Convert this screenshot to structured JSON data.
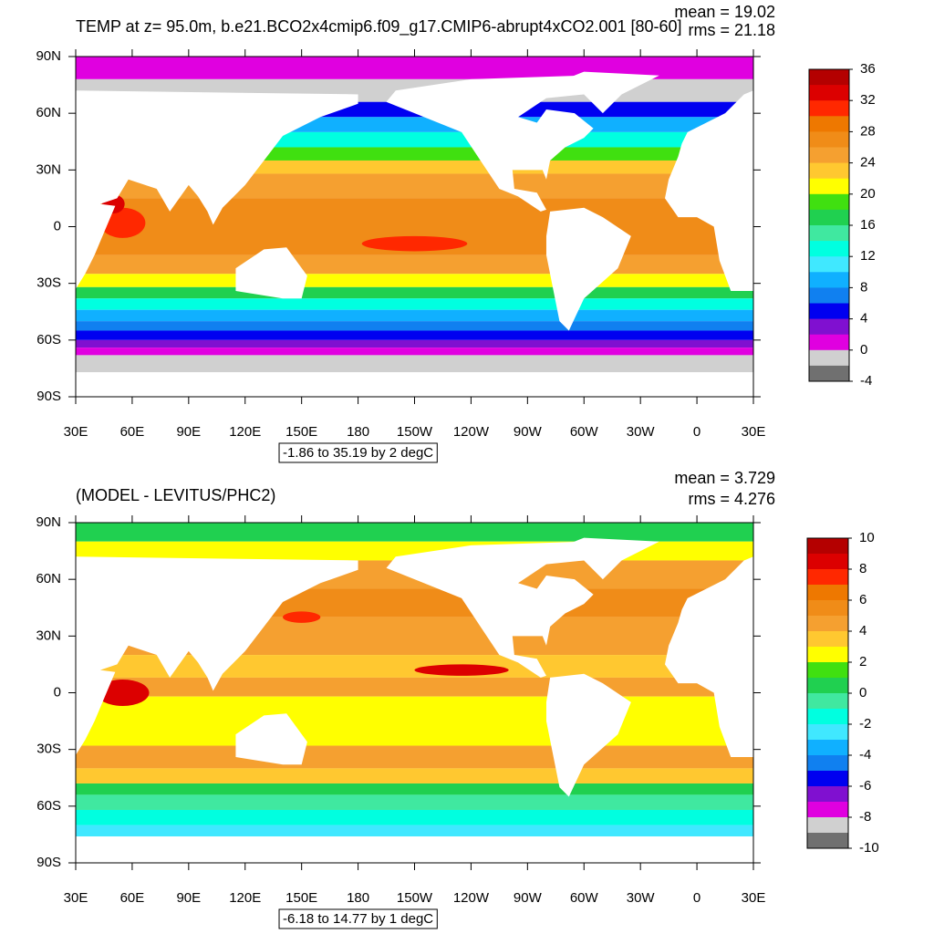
{
  "panels": [
    {
      "title": "TEMP at z=  95.0m, b.e21.BCO2x4cmip6.f09_g17.CMIP6-abrupt4xCO2.001 [80-60]",
      "mean": "mean = 19.02",
      "rms": "rms = 21.18",
      "lat_ticks": [
        {
          "value": 90,
          "label": "90N"
        },
        {
          "value": 60,
          "label": "60N"
        },
        {
          "value": 30,
          "label": "30N"
        },
        0,
        {
          "value": -30,
          "label": "30S"
        },
        {
          "value": -60,
          "label": "60S"
        },
        {
          "value": -90,
          "label": "90S"
        }
      ],
      "lon_ticks": [
        {
          "value": 30,
          "label": "30E"
        },
        {
          "value": 60,
          "label": "60E"
        },
        {
          "value": 90,
          "label": "90E"
        },
        {
          "value": 120,
          "label": "120E"
        },
        {
          "value": 150,
          "label": "150E"
        },
        180,
        {
          "value": 210,
          "label": "150W"
        },
        {
          "value": 240,
          "label": "120W"
        },
        {
          "value": 270,
          "label": "90W"
        },
        {
          "value": 300,
          "label": "60W"
        },
        {
          "value": 330,
          "label": "30W"
        },
        {
          "value": 360,
          "label": "0"
        },
        {
          "value": 390,
          "label": "30E"
        }
      ],
      "range": "-1.86 to 35.19 by 2 degC",
      "colorbar": {
        "ticks": [
          36,
          32,
          28,
          24,
          20,
          16,
          12,
          8,
          4,
          0,
          -4
        ],
        "colors": [
          "#b40000",
          "#dc0000",
          "#ff2800",
          "#ee7800",
          "#f08c18",
          "#f5a030",
          "#ffc830",
          "#ffff00",
          "#40e010",
          "#20d050",
          "#40e8a0",
          "#00ffe0",
          "#40e8ff",
          "#10b0ff",
          "#1080f0",
          "#0000f0",
          "#8010d0",
          "#e000e0",
          "#d0d0d0",
          "#707070"
        ]
      }
    },
    {
      "title": "(MODEL - LEVITUS/PHC2)",
      "mean": "mean = 3.729",
      "rms": "rms = 4.276",
      "lat_ticks": [
        {
          "value": 90,
          "label": "90N"
        },
        {
          "value": 60,
          "label": "60N"
        },
        {
          "value": 30,
          "label": "30N"
        },
        0,
        {
          "value": -30,
          "label": "30S"
        },
        {
          "value": -60,
          "label": "60S"
        },
        {
          "value": -90,
          "label": "90S"
        }
      ],
      "lon_ticks": [
        {
          "value": 30,
          "label": "30E"
        },
        {
          "value": 60,
          "label": "60E"
        },
        {
          "value": 90,
          "label": "90E"
        },
        {
          "value": 120,
          "label": "120E"
        },
        {
          "value": 150,
          "label": "150E"
        },
        180,
        {
          "value": 210,
          "label": "150W"
        },
        {
          "value": 240,
          "label": "120W"
        },
        {
          "value": 270,
          "label": "90W"
        },
        {
          "value": 300,
          "label": "60W"
        },
        {
          "value": 330,
          "label": "30W"
        },
        {
          "value": 360,
          "label": "0"
        },
        {
          "value": 390,
          "label": "30E"
        }
      ],
      "range": "-6.18 to 14.77 by 1 degC",
      "colorbar": {
        "ticks": [
          10,
          8,
          6,
          4,
          2,
          0,
          -2,
          -4,
          -6,
          -8,
          -10
        ],
        "colors": [
          "#b40000",
          "#dc0000",
          "#ff2800",
          "#ee7800",
          "#f08c18",
          "#f5a030",
          "#ffc830",
          "#ffff00",
          "#40e010",
          "#20d050",
          "#40e8a0",
          "#00ffe0",
          "#40e8ff",
          "#10b0ff",
          "#1080f0",
          "#0000f0",
          "#8010d0",
          "#e000e0",
          "#d0d0d0",
          "#707070"
        ]
      }
    }
  ]
}
